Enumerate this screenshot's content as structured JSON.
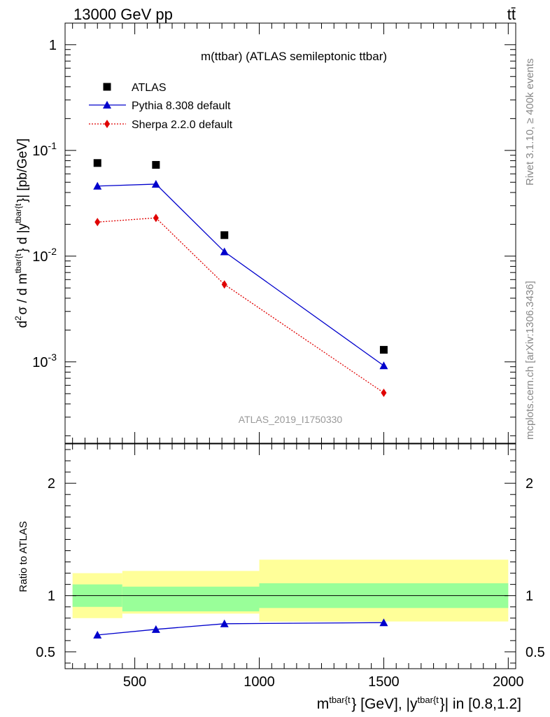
{
  "header": {
    "left": "13000 GeV pp",
    "right": "tt̄"
  },
  "side": {
    "rivet": "Rivet 3.1.10, ≥ 400k events",
    "mcplots": "mcplots.cern.ch [arXiv:1306.3436]"
  },
  "main": {
    "title": "m(ttbar) (ATLAS semileptonic ttbar)",
    "analysis": "ATLAS_2019_I1750330",
    "ylabel": "d²σ / d m^{tbar{t}} d |y^{tbar{t}}| [pb/GeV]"
  },
  "ratio": {
    "ylabel": "Ratio to ATLAS"
  },
  "xaxis": {
    "label": "m^{tbar{t}} [GeV], |y^{tbar{t}}| in [0.8,1.2]"
  },
  "chart_data": [
    {
      "type": "scatter",
      "yscale": "log",
      "xlim": [
        220,
        2030
      ],
      "ylim": [
        0.00017,
        1.6
      ],
      "x": [
        350,
        585,
        860,
        1500
      ],
      "xticks": [
        500,
        1000,
        1500,
        2000
      ],
      "yticks": [
        {
          "value": 0.001,
          "base": "10",
          "exp": "-3"
        },
        {
          "value": 0.01,
          "base": "10",
          "exp": "-2"
        },
        {
          "value": 0.1,
          "base": "10",
          "exp": "-1"
        },
        {
          "value": 1,
          "base": "1",
          "exp": ""
        }
      ],
      "series": [
        {
          "name": "ATLAS",
          "color": "#000000",
          "marker": "square",
          "line": "none",
          "values": [
            0.076,
            0.073,
            0.0158,
            0.0013
          ]
        },
        {
          "name": "Pythia 8.308 default",
          "color": "#0000cc",
          "marker": "triangle",
          "line": "solid",
          "values": [
            0.046,
            0.048,
            0.011,
            0.00092
          ]
        },
        {
          "name": "Sherpa 2.2.0 default",
          "color": "#e00000",
          "marker": "diamond",
          "line": "dotted",
          "values": [
            0.021,
            0.023,
            0.0054,
            0.00051
          ]
        }
      ]
    },
    {
      "type": "line",
      "xlim": [
        220,
        2030
      ],
      "ylim": [
        0.35,
        2.35
      ],
      "yticks": [
        0.5,
        1,
        2
      ],
      "bins": [
        {
          "lo": 250,
          "hi": 450,
          "stat": [
            0.9,
            1.1
          ],
          "total": [
            0.8,
            1.2
          ]
        },
        {
          "lo": 450,
          "hi": 1000,
          "stat": [
            0.86,
            1.08
          ],
          "total": [
            0.84,
            1.22
          ]
        },
        {
          "lo": 1000,
          "hi": 2000,
          "stat": [
            0.89,
            1.11
          ],
          "total": [
            0.77,
            1.32
          ]
        }
      ],
      "series": [
        {
          "name": "Pythia 8.308 default",
          "color": "#0000cc",
          "x": [
            350,
            585,
            860,
            1500
          ],
          "values": [
            0.65,
            0.7,
            0.75,
            0.76
          ]
        }
      ]
    }
  ]
}
